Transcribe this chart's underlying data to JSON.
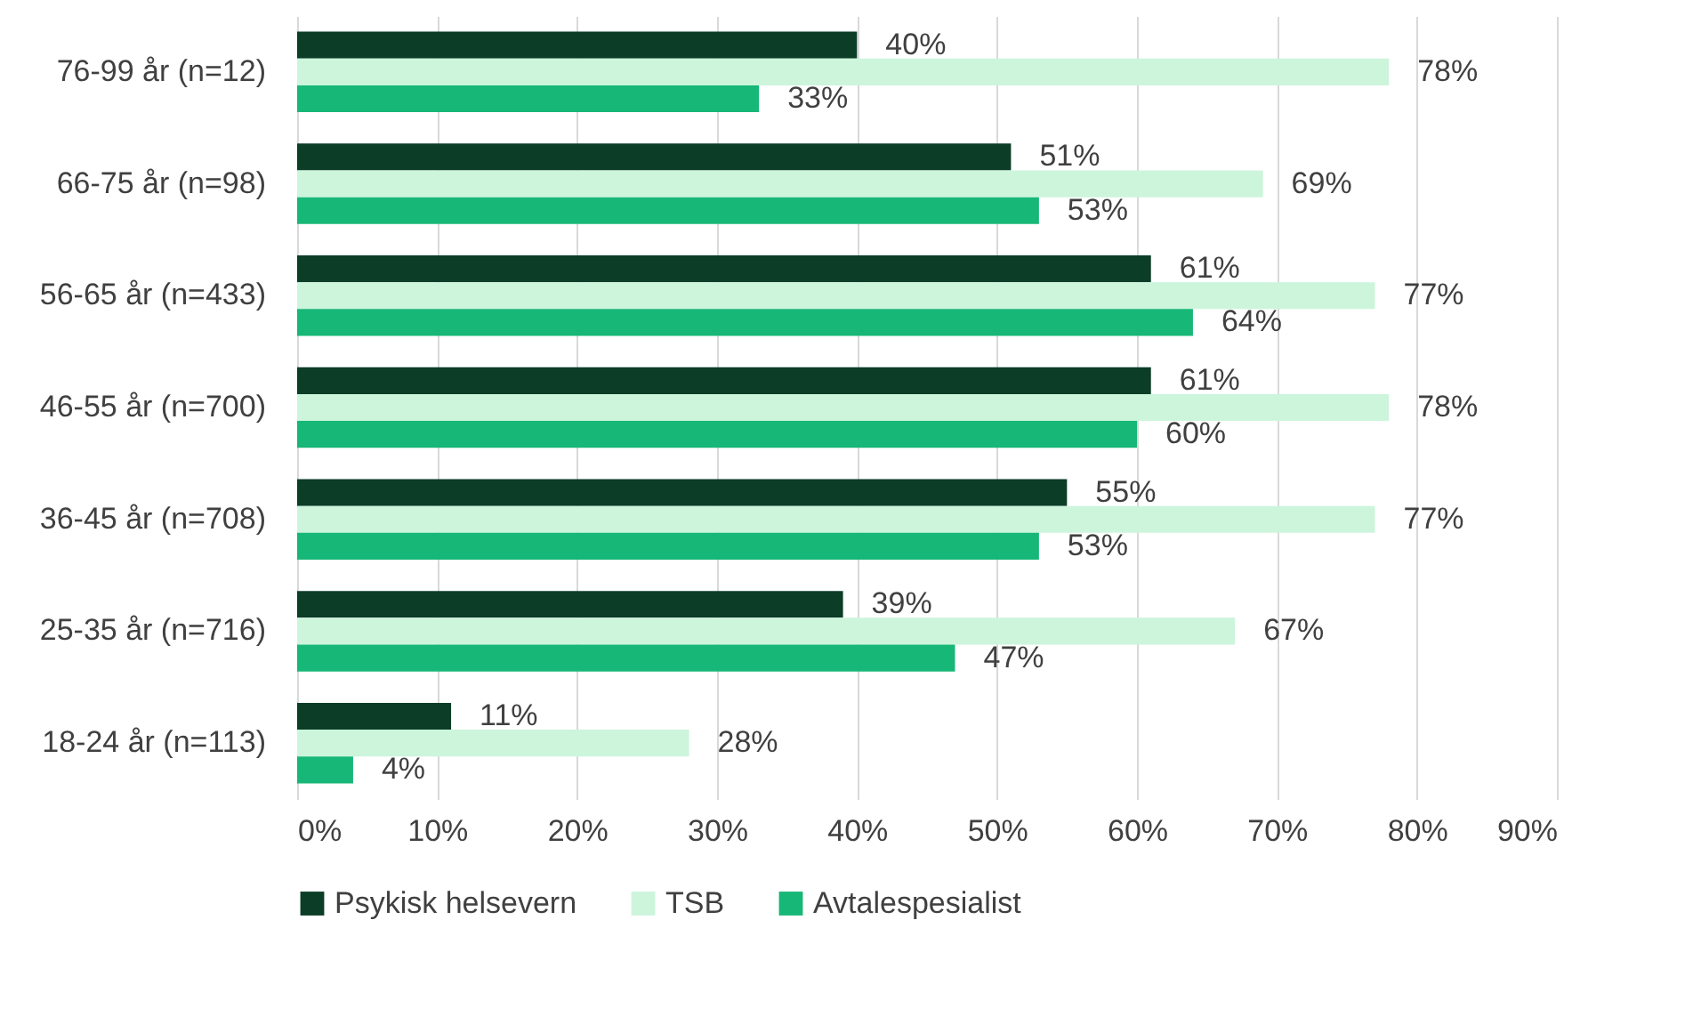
{
  "chart_data": {
    "type": "bar",
    "orientation": "horizontal",
    "categories": [
      "76-99 år (n=12)",
      "66-75 år (n=98)",
      "56-65 år (n=433)",
      "46-55 år (n=700)",
      "36-45 år (n=708)",
      "25-35 år (n=716)",
      "18-24 år (n=113)"
    ],
    "series": [
      {
        "name": "Psykisk helsevern",
        "color": "#0b3d27",
        "values": [
          40,
          51,
          61,
          61,
          55,
          39,
          11
        ],
        "value_labels": [
          "40%",
          "51%",
          "61%",
          "61%",
          "55%",
          "39%",
          "11%"
        ]
      },
      {
        "name": "TSB",
        "color": "#ccf5dc",
        "values": [
          78,
          69,
          77,
          78,
          77,
          67,
          28
        ],
        "value_labels": [
          "78%",
          "69%",
          "77%",
          "78%",
          "77%",
          "67%",
          "28%"
        ]
      },
      {
        "name": "Avtalespesialist",
        "color": "#17b777",
        "values": [
          33,
          53,
          64,
          60,
          53,
          47,
          4
        ],
        "value_labels": [
          "33%",
          "53%",
          "64%",
          "60%",
          "53%",
          "47%",
          "4%"
        ]
      }
    ],
    "xlim": [
      0,
      90
    ],
    "xticks": [
      {
        "value": 0,
        "label": "0%"
      },
      {
        "value": 10,
        "label": "10%"
      },
      {
        "value": 20,
        "label": "20%"
      },
      {
        "value": 30,
        "label": "30%"
      },
      {
        "value": 40,
        "label": "40%"
      },
      {
        "value": 50,
        "label": "50%"
      },
      {
        "value": 60,
        "label": "60%"
      },
      {
        "value": 70,
        "label": "70%"
      },
      {
        "value": 80,
        "label": "80%"
      },
      {
        "value": 90,
        "label": "90%"
      }
    ],
    "grid": "x",
    "legend": "bottom"
  }
}
